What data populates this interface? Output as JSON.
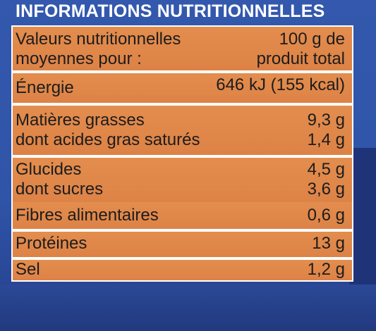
{
  "header": {
    "title": "INFORMATIONS NUTRITIONNELLES"
  },
  "table": {
    "rows": [
      {
        "labels": [
          "Valeurs nutritionnelles",
          "moyennes pour :"
        ],
        "values": [
          "100 g de",
          "produit total"
        ]
      },
      {
        "labels": [
          "Énergie"
        ],
        "values": [
          "646 kJ (155 kcal)"
        ]
      },
      {
        "labels": [
          "Matières grasses",
          "dont acides gras saturés"
        ],
        "values": [
          "9,3 g",
          "1,4 g"
        ]
      },
      {
        "labels": [
          "Glucides",
          "dont sucres"
        ],
        "values": [
          "4,5 g",
          "3,6 g"
        ]
      },
      {
        "labels": [
          "Fibres alimentaires"
        ],
        "values": [
          "0,6 g"
        ]
      },
      {
        "labels": [
          "Protéines"
        ],
        "values": [
          "13 g"
        ]
      },
      {
        "labels": [
          "Sel"
        ],
        "values": [
          "1,2 g"
        ]
      }
    ]
  },
  "colors": {
    "panel_blue": "#2f54a8",
    "row_orange": "#e08a4c",
    "divider_white": "#ffffff",
    "text_dark": "#1c1c1c",
    "heading_white": "#ffffff"
  }
}
